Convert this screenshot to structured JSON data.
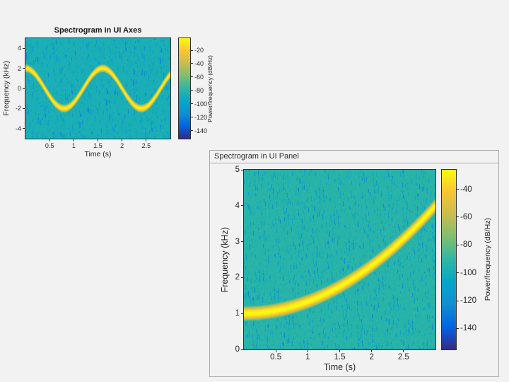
{
  "figure": {
    "background": "#f2f2f2"
  },
  "panel": {
    "title": "Spectrogram in UI Panel"
  },
  "colormap": {
    "name": "parula",
    "stops": [
      [
        0,
        "#352a87"
      ],
      [
        0.125,
        "#0363e1"
      ],
      [
        0.25,
        "#108ed2"
      ],
      [
        0.375,
        "#05a7c9"
      ],
      [
        0.5,
        "#2fb6a3"
      ],
      [
        0.625,
        "#7ebe70"
      ],
      [
        0.75,
        "#c8bd50"
      ],
      [
        0.875,
        "#f9c434"
      ],
      [
        1,
        "#f9fb0e"
      ]
    ]
  },
  "chart_data": [
    {
      "type": "heatmap",
      "title": "Spectrogram in UI Axes",
      "xlabel": "Time (s)",
      "ylabel": "Frequency (kHz)",
      "xlim": [
        0,
        3
      ],
      "ylim": [
        -5,
        5
      ],
      "xticks": [
        0.5,
        1,
        1.5,
        2,
        2.5
      ],
      "yticks": [
        4,
        2,
        0,
        -2,
        -4
      ],
      "colorbar": {
        "label": "Power/frequency (dB/Hz)",
        "min": -152,
        "max": -2,
        "ticks": [
          -20,
          -40,
          -60,
          -80,
          -100,
          -120,
          -140
        ]
      },
      "signal": {
        "kind": "sinusoidal-fm",
        "description": "Bright ridge follows f(t) = 2*cos(2*pi*t/1.6) kHz over teal noise floor",
        "center_khz": 0,
        "amplitude_khz": 2,
        "period_s": 1.6,
        "peak_db": -5,
        "noise_floor_db": -86,
        "ridge_sigma_khz": 0.18,
        "seed": 7
      }
    },
    {
      "type": "heatmap",
      "title": "",
      "xlabel": "Time (s)",
      "ylabel": "Frequency (kHz)",
      "xlim": [
        0,
        3
      ],
      "ylim": [
        0,
        5
      ],
      "xticks": [
        0.5,
        1,
        1.5,
        2,
        2.5
      ],
      "yticks": [
        0,
        1,
        2,
        3,
        4,
        5
      ],
      "colorbar": {
        "label": "Power/frequency (dB/Hz)",
        "min": -155,
        "max": -26,
        "ticks": [
          -40,
          -60,
          -80,
          -100,
          -120,
          -140
        ]
      },
      "signal": {
        "kind": "quadratic-chirp",
        "description": "Bright ridge rises quadratically from 1 kHz at t=0 to 4 kHz at t=3 s",
        "f0_khz": 1,
        "f1_khz": 4,
        "duration_s": 3,
        "peak_db": -26,
        "noise_floor_db": -93,
        "ridge_sigma_khz": 0.1,
        "seed": 99
      }
    }
  ]
}
